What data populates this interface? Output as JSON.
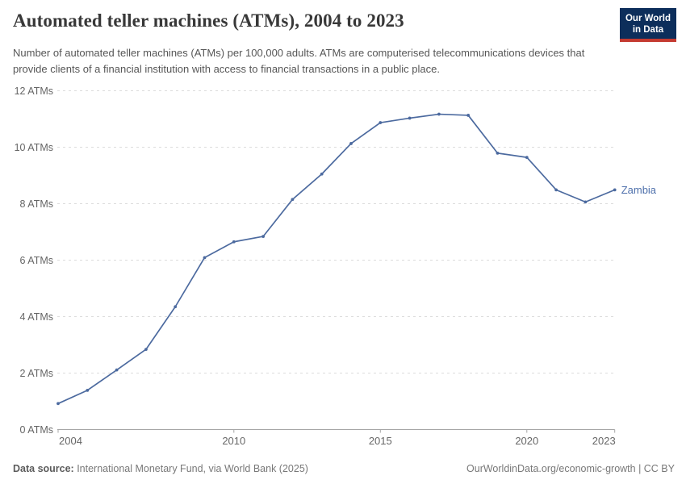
{
  "header": {
    "title": "Automated teller machines (ATMs), 2004 to 2023",
    "subtitle": "Number of automated teller machines (ATMs) per 100,000 adults. ATMs are computerised telecommunications devices that provide clients of a financial institution with access to financial transactions in a public place."
  },
  "logo": {
    "line1": "Our World",
    "line2": "in Data",
    "bg_color": "#0d2e5b",
    "stripe_color": "#c43a31"
  },
  "chart_data": {
    "type": "line",
    "title": "Automated teller machines (ATMs), 2004 to 2023",
    "x": [
      2004,
      2005,
      2006,
      2007,
      2008,
      2009,
      2010,
      2011,
      2012,
      2013,
      2014,
      2015,
      2016,
      2017,
      2018,
      2019,
      2020,
      2021,
      2022,
      2023
    ],
    "series": [
      {
        "name": "Zambia",
        "values": [
          0.92,
          1.39,
          2.11,
          2.84,
          4.35,
          6.09,
          6.65,
          6.84,
          8.15,
          9.05,
          10.13,
          10.87,
          11.03,
          11.17,
          11.13,
          9.79,
          9.64,
          8.49,
          8.06,
          8.49
        ],
        "color": "#4c6a9f",
        "label_color": "#4d6fab"
      }
    ],
    "xlabel": "",
    "ylabel": "",
    "ylim": [
      0,
      12
    ],
    "yticks": [
      0,
      2,
      4,
      6,
      8,
      10,
      12
    ],
    "ytick_suffix": " ATMs",
    "xticks": [
      2004,
      2010,
      2015,
      2020,
      2023
    ],
    "grid": "horizontal-dashed",
    "gridline_color": "#dcdcdc",
    "axis_color": "#a6a6a6",
    "tick_label_color": "#666666",
    "legend_position": "end-of-line-label"
  },
  "footer": {
    "datasource_label": "Data source:",
    "datasource_text": " International Monetary Fund, via World Bank (2025)",
    "credit": "OurWorldinData.org/economic-growth | CC BY"
  }
}
